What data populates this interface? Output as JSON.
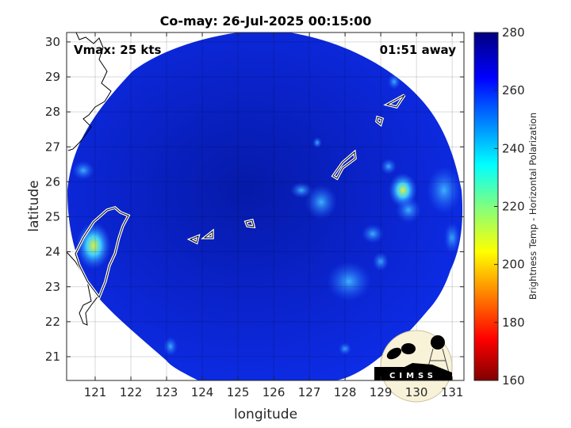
{
  "title": "Co-may: 26-Jul-2025 00:15:00",
  "annotations": {
    "vmax": "Vmax: 25 kts",
    "time_away": "01:51 away"
  },
  "xaxis": {
    "label": "longitude",
    "ticks": [
      "121",
      "122",
      "123",
      "124",
      "125",
      "126",
      "127",
      "128",
      "129",
      "130",
      "131"
    ],
    "range": [
      120.2,
      131.33
    ]
  },
  "yaxis": {
    "label": "latitude",
    "ticks": [
      "21",
      "22",
      "23",
      "24",
      "25",
      "26",
      "27",
      "28",
      "29",
      "30"
    ],
    "range": [
      20.32,
      30.27
    ]
  },
  "colorbar": {
    "label": "Brightness Temp - Horizontal Polarization",
    "ticks": [
      "280",
      "260",
      "240",
      "220",
      "200",
      "180",
      "160"
    ],
    "range": [
      160,
      280
    ],
    "colormap": "jet"
  },
  "logo": {
    "text": "CIMSS"
  },
  "colors": {
    "background_field": "#0a22d8",
    "warm_cloud": "#3fc0ff",
    "coast_land": "#000000",
    "taiwan_outline": "#ffffff"
  },
  "chart_data": {
    "type": "heatmap",
    "title": "Co-may: 26-Jul-2025 00:15:00",
    "xlabel": "longitude",
    "ylabel": "latitude",
    "xlim": [
      120.2,
      131.33
    ],
    "ylim": [
      20.32,
      30.27
    ],
    "clim": [
      160,
      280
    ],
    "grid": true,
    "colorbar_label": "Brightness Temp - Horizontal Polarization",
    "features": [
      {
        "lon": 129.7,
        "lat": 25.8,
        "tb": 215
      },
      {
        "lon": 129.8,
        "lat": 25.3,
        "tb": 240
      },
      {
        "lon": 128.3,
        "lat": 22.9,
        "tb": 248
      },
      {
        "lon": 121.0,
        "lat": 24.3,
        "tb": 230
      },
      {
        "lon": 120.9,
        "lat": 25.8,
        "tb": 240
      },
      {
        "lon": 123.1,
        "lat": 21.3,
        "tb": 240
      }
    ]
  }
}
